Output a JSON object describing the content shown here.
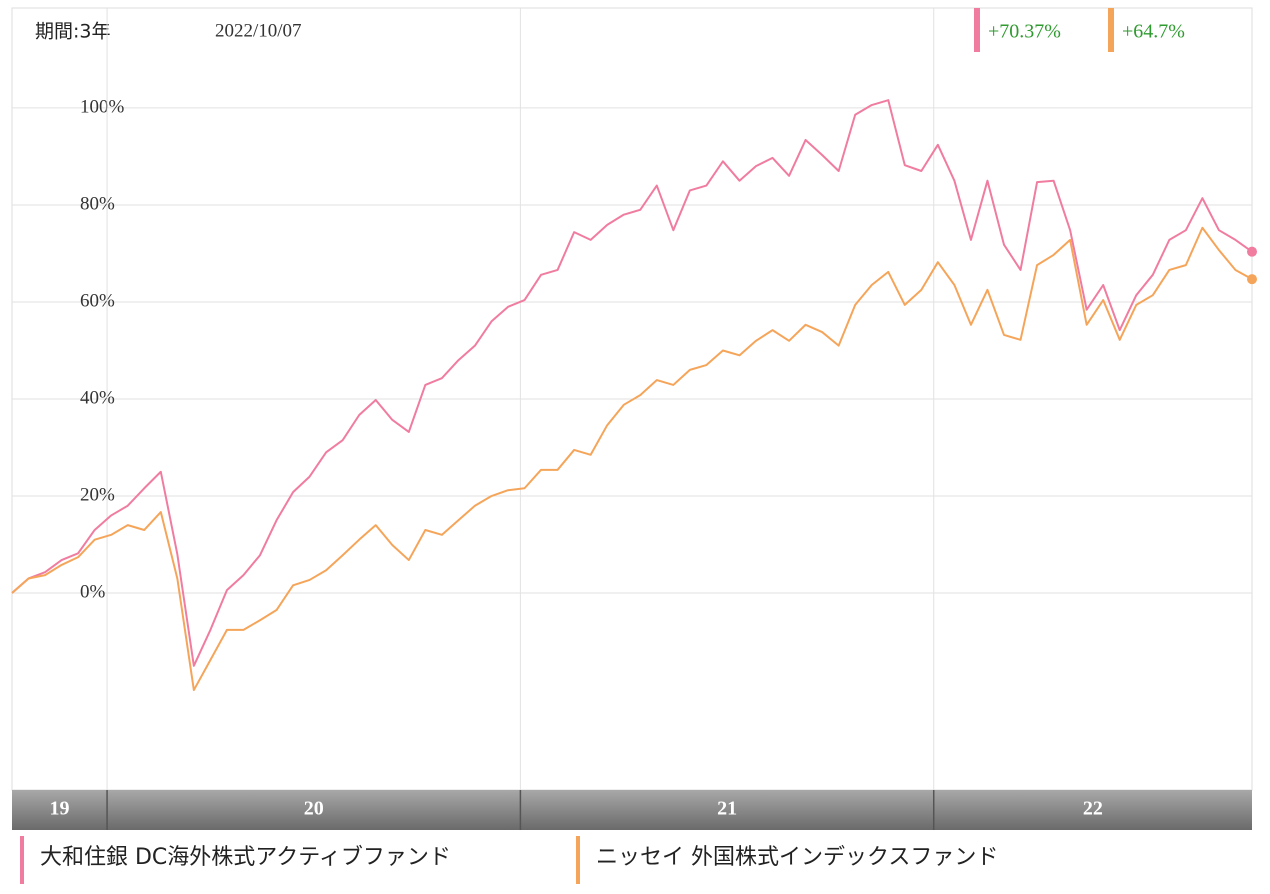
{
  "chart_data": {
    "type": "line",
    "period": "期間:3年",
    "date": "2022/10/07",
    "xlim": [
      2019.77,
      2022.77
    ],
    "xticks": [
      {
        "value": 2020,
        "label": "20"
      },
      {
        "value": 2021,
        "label": "21"
      },
      {
        "value": 2022,
        "label": "22"
      }
    ],
    "year_labels": [
      "19",
      "20",
      "21",
      "22"
    ],
    "ylim": [
      -40.6,
      120.6
    ],
    "yticks": [
      {
        "value": 0,
        "label": "0%"
      },
      {
        "value": 20,
        "label": "20%"
      },
      {
        "value": 40,
        "label": "40%"
      },
      {
        "value": 60,
        "label": "60%"
      },
      {
        "value": 80,
        "label": "80%"
      },
      {
        "value": 100,
        "label": "100%"
      }
    ],
    "grid": true,
    "x": [
      2019.77,
      2019.81,
      2019.85,
      2019.89,
      2019.93,
      2019.97,
      2020.01,
      2020.05,
      2020.09,
      2020.13,
      2020.17,
      2020.21,
      2020.25,
      2020.29,
      2020.33,
      2020.37,
      2020.41,
      2020.45,
      2020.49,
      2020.53,
      2020.57,
      2020.61,
      2020.65,
      2020.69,
      2020.73,
      2020.77,
      2020.81,
      2020.85,
      2020.89,
      2020.93,
      2020.97,
      2021.01,
      2021.05,
      2021.09,
      2021.13,
      2021.17,
      2021.21,
      2021.25,
      2021.29,
      2021.33,
      2021.37,
      2021.41,
      2021.45,
      2021.49,
      2021.53,
      2021.57,
      2021.61,
      2021.65,
      2021.69,
      2021.73,
      2021.77,
      2021.81,
      2021.85,
      2021.89,
      2021.93,
      2021.97,
      2022.01,
      2022.05,
      2022.09,
      2022.13,
      2022.17,
      2022.21,
      2022.25,
      2022.29,
      2022.33,
      2022.37,
      2022.41,
      2022.45,
      2022.49,
      2022.53,
      2022.57,
      2022.61,
      2022.65,
      2022.69,
      2022.73,
      2022.77
    ],
    "series": [
      {
        "name": "大和住銀 DC海外株式アクティブファンド",
        "color": "#f07ca0",
        "end_label": "+70.37%",
        "values": [
          0,
          3,
          4.3,
          6.8,
          8.2,
          13,
          16,
          18,
          21.6,
          25,
          8,
          -15,
          -7.6,
          0.6,
          3.7,
          7.8,
          15,
          20.8,
          24,
          29,
          31.5,
          36.7,
          39.8,
          35.7,
          33.2,
          42.9,
          44.3,
          48,
          51,
          56,
          59,
          60.4,
          65.6,
          66.6,
          74.4,
          72.8,
          75.9,
          78,
          79,
          84,
          74.8,
          83,
          84,
          89,
          85,
          88,
          89.7,
          86,
          93.4,
          90.3,
          87,
          98.6,
          100.6,
          101.6,
          88.2,
          87,
          92.4,
          85,
          72.8,
          85,
          71.8,
          66.6,
          84.7,
          85,
          74.8,
          58.4,
          63.5,
          54.2,
          61.4,
          65.6,
          72.8,
          74.8,
          81.4,
          74.8,
          72.8,
          70.37
        ]
      },
      {
        "name": "ニッセイ 外国株式インデックスファンド",
        "color": "#f5a55a",
        "end_label": "+64.7%",
        "values": [
          0,
          3,
          3.7,
          5.8,
          7.4,
          11,
          12,
          14,
          13,
          16.7,
          3,
          -20,
          -13.8,
          -7.6,
          -7.6,
          -5.6,
          -3.5,
          1.6,
          2.7,
          4.7,
          7.8,
          11,
          14,
          9.9,
          6.8,
          13,
          12,
          15,
          18,
          20,
          21.2,
          21.6,
          25.4,
          25.4,
          29.5,
          28.5,
          34.6,
          38.8,
          40.8,
          43.9,
          42.9,
          46,
          47,
          50,
          49,
          52,
          54.2,
          52,
          55.3,
          53.8,
          51,
          59.4,
          63.5,
          66.2,
          59.4,
          62.5,
          68.2,
          63.5,
          55.3,
          62.5,
          53.2,
          52.2,
          67.6,
          69.7,
          72.8,
          55.3,
          60.4,
          52.2,
          59.4,
          61.4,
          66.6,
          67.6,
          75.3,
          70.7,
          66.6,
          64.7
        ]
      }
    ]
  }
}
